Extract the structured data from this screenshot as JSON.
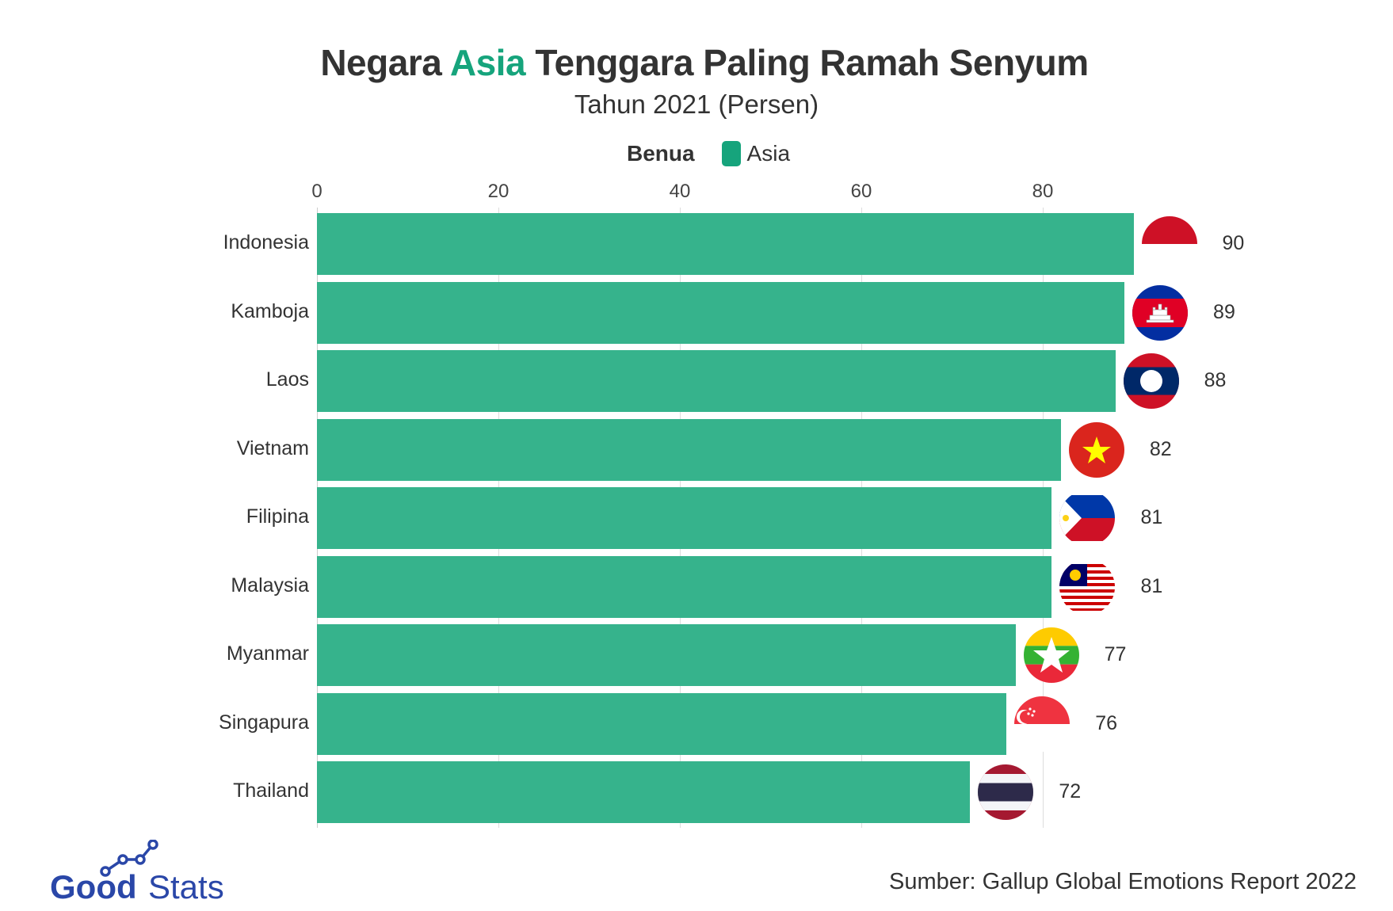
{
  "header": {
    "title_pre": "Negara ",
    "title_highlight": "Asia",
    "title_post": " Tenggara Paling Ramah Senyum",
    "subtitle": "Tahun 2021 (Persen)"
  },
  "legend": {
    "title": "Benua",
    "items": [
      {
        "label": "Asia",
        "color": "#16a47c"
      }
    ]
  },
  "footer": {
    "source": "Sumber: Gallup Global Emotions Report 2022",
    "logo_bold": "Good",
    "logo_light": "Stats"
  },
  "colors": {
    "bar": "#36b38c",
    "accent": "#16a47c",
    "logo": "#2a47a8",
    "grid": "#dddddd"
  },
  "chart_data": {
    "type": "bar",
    "orientation": "horizontal",
    "title": "Negara Asia Tenggara Paling Ramah Senyum",
    "subtitle": "Tahun 2021 (Persen)",
    "xlabel": "",
    "ylabel": "",
    "xlim": [
      0,
      90
    ],
    "xticks": [
      0,
      20,
      40,
      60,
      80
    ],
    "grid": true,
    "legend_position": "top",
    "categories": [
      "Indonesia",
      "Kamboja",
      "Laos",
      "Vietnam",
      "Filipina",
      "Malaysia",
      "Myanmar",
      "Singapura",
      "Thailand"
    ],
    "series": [
      {
        "name": "Asia",
        "values": [
          90,
          89,
          88,
          82,
          81,
          81,
          77,
          76,
          72
        ]
      }
    ],
    "flags": [
      "indonesia",
      "cambodia",
      "laos",
      "vietnam",
      "philippines",
      "malaysia",
      "myanmar",
      "singapore",
      "thailand"
    ]
  }
}
